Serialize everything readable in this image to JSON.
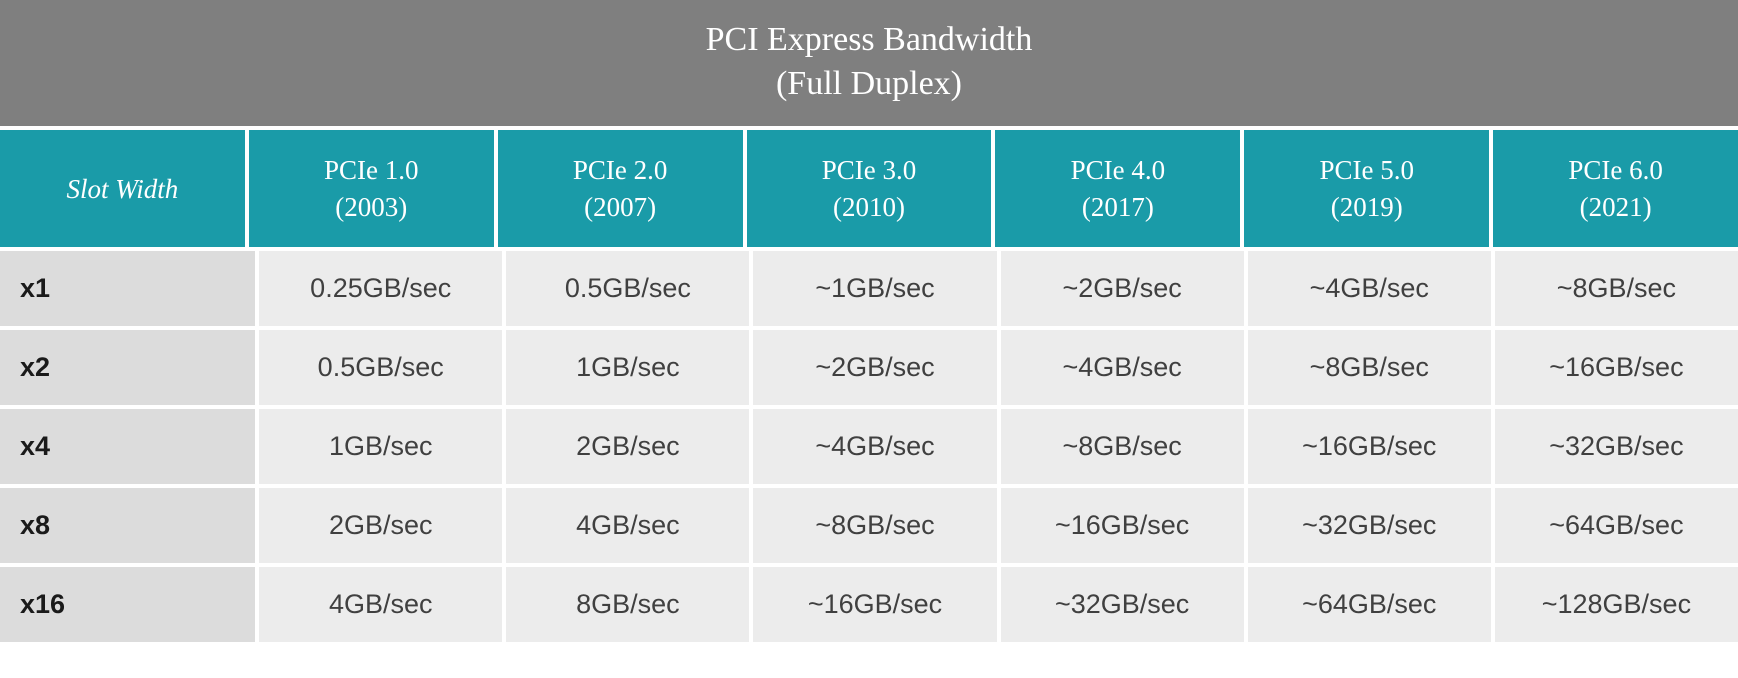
{
  "title_line1": "PCI Express Bandwidth",
  "title_line2": "(Full Duplex)",
  "colors": {
    "title_bg": "#7f7f7f",
    "header_bg": "#1a9ba8",
    "row_header_bg": "#dcdcdc",
    "cell_bg": "#ececec",
    "border": "#ffffff",
    "title_text": "#ffffff",
    "header_text": "#ffffff",
    "cell_text": "#404040",
    "row_header_text": "#1a1a1a"
  },
  "typography": {
    "title_fontsize": 34,
    "header_fontsize": 27,
    "cell_fontsize": 27
  },
  "table": {
    "type": "table",
    "row_header_label": "Slot Width",
    "columns": [
      {
        "name": "PCIe 1.0",
        "year": "(2003)"
      },
      {
        "name": "PCIe 2.0",
        "year": "(2007)"
      },
      {
        "name": "PCIe 3.0",
        "year": "(2010)"
      },
      {
        "name": "PCIe 4.0",
        "year": "(2017)"
      },
      {
        "name": "PCIe 5.0",
        "year": "(2019)"
      },
      {
        "name": "PCIe 6.0",
        "year": "(2021)"
      }
    ],
    "rows": [
      {
        "slot": "x1",
        "values": [
          "0.25GB/sec",
          "0.5GB/sec",
          "~1GB/sec",
          "~2GB/sec",
          "~4GB/sec",
          "~8GB/sec"
        ]
      },
      {
        "slot": "x2",
        "values": [
          "0.5GB/sec",
          "1GB/sec",
          "~2GB/sec",
          "~4GB/sec",
          "~8GB/sec",
          "~16GB/sec"
        ]
      },
      {
        "slot": "x4",
        "values": [
          "1GB/sec",
          "2GB/sec",
          "~4GB/sec",
          "~8GB/sec",
          "~16GB/sec",
          "~32GB/sec"
        ]
      },
      {
        "slot": "x8",
        "values": [
          "2GB/sec",
          "4GB/sec",
          "~8GB/sec",
          "~16GB/sec",
          "~32GB/sec",
          "~64GB/sec"
        ]
      },
      {
        "slot": "x16",
        "values": [
          "4GB/sec",
          "8GB/sec",
          "~16GB/sec",
          "~32GB/sec",
          "~64GB/sec",
          "~128GB/sec"
        ]
      }
    ]
  }
}
